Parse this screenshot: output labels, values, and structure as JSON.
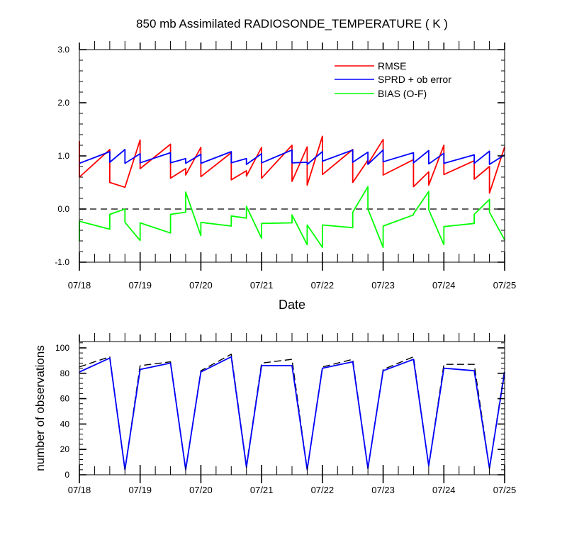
{
  "colors": {
    "rmse": "#ff0000",
    "sprd": "#0000ff",
    "bias": "#00ff00",
    "total": "#000000",
    "used": "#0000ff",
    "zero_line": "#000000"
  },
  "chart_data": [
    {
      "type": "line",
      "title": "850 mb Assimilated RADIOSONDE_TEMPERATURE ( K )",
      "xlabel": "Date",
      "ylabel": "",
      "x_ticks": [
        "07/18",
        "07/19",
        "07/20",
        "07/21",
        "07/22",
        "07/23",
        "07/24",
        "07/25"
      ],
      "y_ticks": [
        "-1.0",
        "0.0",
        "1.0",
        "2.0",
        "3.0"
      ],
      "xlim": [
        0,
        7
      ],
      "ylim": [
        -1,
        3
      ],
      "grid": false,
      "legend_position": "top-right",
      "zero_line": "dashed",
      "x_note": "x values are day offsets from 07/18",
      "series": [
        {
          "name": "RMSE",
          "color": "#ff0000",
          "points": [
            [
              0,
              1.28
            ],
            [
              0,
              0.6
            ],
            [
              0.5,
              1.12
            ],
            [
              0.5,
              0.5
            ],
            [
              0.75,
              0.41
            ],
            [
              1,
              1.3
            ],
            [
              1,
              0.76
            ],
            [
              1.5,
              1.22
            ],
            [
              1.5,
              0.58
            ],
            [
              1.75,
              0.76
            ],
            [
              1.75,
              0.64
            ],
            [
              2,
              1.16
            ],
            [
              2,
              0.61
            ],
            [
              2.5,
              1.06
            ],
            [
              2.5,
              0.55
            ],
            [
              2.75,
              0.72
            ],
            [
              2.75,
              0.62
            ],
            [
              3,
              1.16
            ],
            [
              3,
              0.58
            ],
            [
              3.5,
              1.2
            ],
            [
              3.5,
              0.52
            ],
            [
              3.75,
              1.17
            ],
            [
              3.75,
              0.45
            ],
            [
              4,
              1.37
            ],
            [
              4,
              0.65
            ],
            [
              4.5,
              1.12
            ],
            [
              4.5,
              0.5
            ],
            [
              4.75,
              0.92
            ],
            [
              4.75,
              0.85
            ],
            [
              5,
              1.31
            ],
            [
              5,
              0.64
            ],
            [
              5.5,
              0.93
            ],
            [
              5.5,
              0.42
            ],
            [
              5.75,
              0.7
            ],
            [
              5.75,
              0.45
            ],
            [
              6,
              1.2
            ],
            [
              6,
              0.65
            ],
            [
              6.5,
              0.91
            ],
            [
              6.5,
              0.56
            ],
            [
              6.75,
              0.8
            ],
            [
              6.75,
              0.3
            ],
            [
              7,
              1.17
            ]
          ]
        },
        {
          "name": "SPRD + ob error",
          "color": "#0000ff",
          "points": [
            [
              0,
              0.86
            ],
            [
              0.5,
              1.08
            ],
            [
              0.5,
              0.88
            ],
            [
              0.75,
              1.12
            ],
            [
              0.75,
              0.86
            ],
            [
              1,
              1.04
            ],
            [
              1,
              0.87
            ],
            [
              1.5,
              1.06
            ],
            [
              1.5,
              0.87
            ],
            [
              1.75,
              0.95
            ],
            [
              1.75,
              0.86
            ],
            [
              2,
              1.03
            ],
            [
              2,
              0.86
            ],
            [
              2.5,
              1.08
            ],
            [
              2.5,
              0.87
            ],
            [
              2.75,
              0.95
            ],
            [
              2.75,
              0.84
            ],
            [
              3,
              1.04
            ],
            [
              3,
              0.87
            ],
            [
              3.5,
              1.11
            ],
            [
              3.5,
              0.87
            ],
            [
              3.75,
              0.88
            ],
            [
              3.75,
              0.84
            ],
            [
              4,
              1.08
            ],
            [
              4,
              0.9
            ],
            [
              4.5,
              1.11
            ],
            [
              4.5,
              0.88
            ],
            [
              4.75,
              1.07
            ],
            [
              4.75,
              0.84
            ],
            [
              5,
              1.11
            ],
            [
              5,
              0.89
            ],
            [
              5.5,
              1.06
            ],
            [
              5.5,
              0.87
            ],
            [
              5.75,
              1.1
            ],
            [
              5.75,
              0.85
            ],
            [
              6,
              1.05
            ],
            [
              6,
              0.86
            ],
            [
              6.5,
              1.02
            ],
            [
              6.5,
              0.86
            ],
            [
              6.75,
              1.09
            ],
            [
              6.75,
              0.84
            ],
            [
              7,
              1.02
            ]
          ]
        },
        {
          "name": "BIAS (O-F)",
          "color": "#00ff00",
          "points": [
            [
              0,
              -0.6
            ],
            [
              0,
              -0.23
            ],
            [
              0.5,
              -0.38
            ],
            [
              0.5,
              -0.1
            ],
            [
              0.75,
              0.0
            ],
            [
              0.75,
              -0.25
            ],
            [
              1,
              -0.59
            ],
            [
              1,
              -0.26
            ],
            [
              1.5,
              -0.45
            ],
            [
              1.5,
              -0.1
            ],
            [
              1.75,
              -0.06
            ],
            [
              1.75,
              0.32
            ],
            [
              2,
              -0.5
            ],
            [
              2,
              -0.25
            ],
            [
              2.5,
              -0.32
            ],
            [
              2.5,
              -0.13
            ],
            [
              2.75,
              -0.17
            ],
            [
              2.75,
              0.05
            ],
            [
              3,
              -0.55
            ],
            [
              3,
              -0.27
            ],
            [
              3.5,
              -0.26
            ],
            [
              3.5,
              -0.11
            ],
            [
              3.75,
              -0.67
            ],
            [
              3.75,
              -0.3
            ],
            [
              4,
              -0.72
            ],
            [
              4,
              -0.3
            ],
            [
              4.5,
              -0.35
            ],
            [
              4.5,
              -0.06
            ],
            [
              4.75,
              0.42
            ],
            [
              4.75,
              0.0
            ],
            [
              5,
              -0.72
            ],
            [
              5,
              -0.32
            ],
            [
              5.5,
              -0.11
            ],
            [
              5.5,
              -0.09
            ],
            [
              5.75,
              0.33
            ],
            [
              5.75,
              -0.01
            ],
            [
              6,
              -0.67
            ],
            [
              6,
              -0.33
            ],
            [
              6.5,
              -0.27
            ],
            [
              6.5,
              -0.1
            ],
            [
              6.75,
              0.18
            ],
            [
              6.75,
              -0.06
            ],
            [
              7,
              -0.58
            ]
          ]
        }
      ]
    },
    {
      "type": "line",
      "title": "",
      "xlabel": "",
      "ylabel": "number of observations",
      "x_ticks": [
        "07/18",
        "07/19",
        "07/20",
        "07/21",
        "07/22",
        "07/23",
        "07/24",
        "07/25"
      ],
      "y_ticks": [
        "0",
        "20",
        "40",
        "60",
        "80",
        "100"
      ],
      "xlim": [
        0,
        7
      ],
      "ylim": [
        0,
        105
      ],
      "grid": false,
      "x_note": "x values are day offsets from 07/18",
      "series": [
        {
          "name": "",
          "color": "#000000",
          "dash": "dashed",
          "points": [
            [
              0,
              85
            ],
            [
              0.5,
              93
            ],
            [
              0.75,
              4
            ],
            [
              1,
              86
            ],
            [
              1.5,
              89
            ],
            [
              1.75,
              4
            ],
            [
              2,
              82
            ],
            [
              2.5,
              95
            ],
            [
              2.75,
              7
            ],
            [
              3,
              88
            ],
            [
              3.5,
              91
            ],
            [
              3.75,
              4
            ],
            [
              4,
              85
            ],
            [
              4.5,
              91
            ],
            [
              4.75,
              5
            ],
            [
              5,
              83
            ],
            [
              5.5,
              93
            ],
            [
              5.75,
              7
            ],
            [
              6,
              87
            ],
            [
              6.5,
              87
            ],
            [
              6.75,
              5
            ],
            [
              7,
              83
            ]
          ]
        },
        {
          "name": "",
          "color": "#0000ff",
          "dash": "solid",
          "points": [
            [
              0,
              81
            ],
            [
              0.5,
              92
            ],
            [
              0.75,
              4
            ],
            [
              1,
              83
            ],
            [
              1.5,
              88
            ],
            [
              1.75,
              4
            ],
            [
              2,
              81
            ],
            [
              2.5,
              93
            ],
            [
              2.75,
              6
            ],
            [
              3,
              86
            ],
            [
              3.5,
              86
            ],
            [
              3.75,
              4
            ],
            [
              4,
              84
            ],
            [
              4.5,
              89
            ],
            [
              4.75,
              5
            ],
            [
              5,
              82
            ],
            [
              5.5,
              91
            ],
            [
              5.75,
              7
            ],
            [
              6,
              84
            ],
            [
              6.5,
              82
            ],
            [
              6.75,
              5
            ],
            [
              7,
              81
            ]
          ]
        }
      ]
    }
  ]
}
